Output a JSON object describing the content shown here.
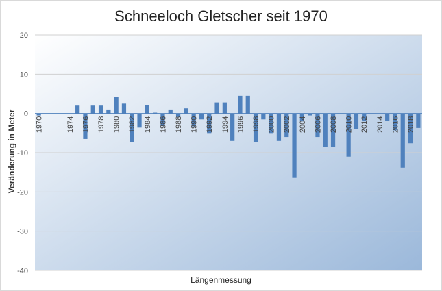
{
  "chart_data": {
    "type": "bar",
    "title": "Schneeloch Gletscher seit 1970",
    "xlabel": "Längenmessung",
    "ylabel": "Veränderung in Meter",
    "ylim": [
      -40,
      20
    ],
    "yticks": [
      20,
      10,
      0,
      -10,
      -20,
      -30,
      -40
    ],
    "x_tick_labels": [
      "1970",
      "1974",
      "1976",
      "1978",
      "1980",
      "1982",
      "1984",
      "1986",
      "1988",
      "1990",
      "1992",
      "1994",
      "1996",
      "1998",
      "2000",
      "2002",
      "2004",
      "2006",
      "2008",
      "2010",
      "2012",
      "2014",
      "2016",
      "2018"
    ],
    "categories": [
      1970,
      1971,
      1972,
      1973,
      1974,
      1975,
      1976,
      1977,
      1978,
      1979,
      1980,
      1981,
      1982,
      1983,
      1984,
      1985,
      1986,
      1987,
      1988,
      1989,
      1990,
      1991,
      1992,
      1993,
      1994,
      1995,
      1996,
      1997,
      1998,
      1999,
      2000,
      2001,
      2002,
      2003,
      2004,
      2005,
      2006,
      2007,
      2008,
      2009,
      2010,
      2011,
      2012,
      2013,
      2014,
      2015,
      2016,
      2017,
      2018,
      2019
    ],
    "values": [
      -0.5,
      0,
      0,
      0,
      0,
      2,
      -6.5,
      2,
      2,
      1,
      4.2,
      2.5,
      -7.3,
      -3.6,
      2.1,
      0.2,
      -3.2,
      1,
      -0.9,
      1.3,
      -3.3,
      -1.5,
      -5,
      2.8,
      2.8,
      -7,
      4.5,
      4.5,
      -7.3,
      -1.5,
      -5,
      -7,
      -6,
      -16.4,
      -2,
      -0.5,
      -6,
      -8.6,
      -8.5,
      0,
      -11,
      -4,
      -2,
      0,
      0,
      -1.8,
      -4.3,
      -13.8,
      -7.6,
      -3.7
    ],
    "bar_color": "#4f81bd",
    "background_gradient": [
      "#ffffff",
      "#9bb8da"
    ],
    "grid": true
  }
}
